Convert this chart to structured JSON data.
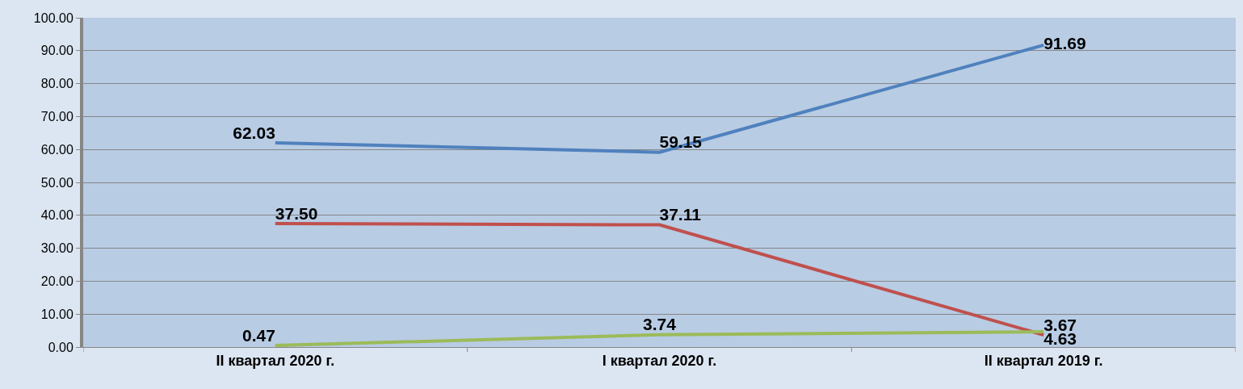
{
  "chart_data": {
    "type": "line",
    "categories": [
      "II квартал 2020 г.",
      "I квартал 2020 г.",
      "II квартал 2019 г."
    ],
    "series": [
      {
        "color": "#4f81bd",
        "values": [
          62.03,
          59.15,
          91.69
        ],
        "value_labels": [
          "62.03",
          "59.15",
          "91.69"
        ]
      },
      {
        "color": "#c0504d",
        "values": [
          37.5,
          37.11,
          3.67
        ],
        "value_labels": [
          "37.50",
          "37.11",
          "3.67"
        ]
      },
      {
        "color": "#9bbb59",
        "values": [
          0.47,
          3.74,
          4.63
        ],
        "value_labels": [
          "0.47",
          "3.74",
          "4.63"
        ]
      }
    ],
    "ylim": [
      0,
      100
    ],
    "yticks": [
      {
        "value": 0,
        "label": "0.00"
      },
      {
        "value": 10,
        "label": "10.00"
      },
      {
        "value": 20,
        "label": "20.00"
      },
      {
        "value": 30,
        "label": "30.00"
      },
      {
        "value": 40,
        "label": "40.00"
      },
      {
        "value": 50,
        "label": "50.00"
      },
      {
        "value": 60,
        "label": "60.00"
      },
      {
        "value": 70,
        "label": "70.00"
      },
      {
        "value": 80,
        "label": "80.00"
      },
      {
        "value": 90,
        "label": "90.00"
      },
      {
        "value": 100,
        "label": "100.00"
      }
    ],
    "grid": "y",
    "marker": "none",
    "line_style": "solid"
  }
}
